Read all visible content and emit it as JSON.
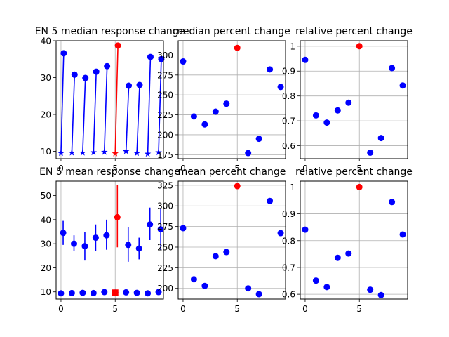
{
  "chart_data": [
    {
      "type": "stem",
      "title": "EN 5 median response change",
      "xlim": [
        -0.45,
        9.45
      ],
      "ylim": [
        8,
        40
      ],
      "xticks": [
        0,
        5
      ],
      "yticks": [
        10,
        20,
        30,
        40
      ],
      "grid": "x-only",
      "highlight_index": 5,
      "colors": {
        "normal": "#0000ff",
        "highlight": "#ff0000"
      },
      "segments": [
        {
          "x0": 0,
          "y0": 9.5,
          "x1": 0.25,
          "y1": 36.6
        },
        {
          "x0": 1,
          "y0": 9.6,
          "x1": 1.25,
          "y1": 30.8
        },
        {
          "x0": 2,
          "y0": 9.6,
          "x1": 2.25,
          "y1": 29.9
        },
        {
          "x0": 3,
          "y0": 9.7,
          "x1": 3.25,
          "y1": 31.6
        },
        {
          "x0": 4,
          "y0": 9.8,
          "x1": 4.25,
          "y1": 33.1
        },
        {
          "x0": 5,
          "y0": 9.4,
          "x1": 5.25,
          "y1": 38.7
        },
        {
          "x0": 6,
          "y0": 10.0,
          "x1": 6.25,
          "y1": 27.8
        },
        {
          "x0": 7,
          "y0": 9.5,
          "x1": 7.25,
          "y1": 28.0
        },
        {
          "x0": 8,
          "y0": 9.3,
          "x1": 8.25,
          "y1": 35.6
        },
        {
          "x0": 9,
          "y0": 9.7,
          "x1": 9.25,
          "y1": 35.0
        }
      ]
    },
    {
      "type": "scatter",
      "title": "median percent change",
      "xlim": [
        -0.45,
        9.45
      ],
      "ylim": [
        170,
        318
      ],
      "xticks": [
        0,
        5
      ],
      "yticks": [
        175,
        200,
        225,
        250,
        275,
        300
      ],
      "grid": "both",
      "highlight_index": 5,
      "colors": {
        "normal": "#0000ff",
        "highlight": "#ff0000"
      },
      "x": [
        0,
        1,
        2,
        3,
        4,
        5,
        6,
        7,
        8,
        9
      ],
      "y": [
        292,
        223,
        213,
        229,
        239,
        309,
        177,
        195,
        282,
        260
      ]
    },
    {
      "type": "scatter",
      "title": "relative percent change",
      "xlim": [
        -0.45,
        9.45
      ],
      "ylim": [
        0.548,
        1.022
      ],
      "xticks": [
        0,
        5
      ],
      "yticks": [
        0.6,
        0.7,
        0.8,
        0.9,
        1.0
      ],
      "grid": "both",
      "highlight_index": 5,
      "colors": {
        "normal": "#0000ff",
        "highlight": "#ff0000"
      },
      "x": [
        0,
        1,
        2,
        3,
        4,
        5,
        6,
        7,
        8,
        9
      ],
      "y": [
        0.945,
        0.722,
        0.693,
        0.742,
        0.773,
        1.0,
        0.572,
        0.631,
        0.912,
        0.842
      ]
    },
    {
      "type": "errorbar",
      "title": "EN 5 mean response change",
      "xlim": [
        -0.45,
        9.45
      ],
      "ylim": [
        7,
        56
      ],
      "xticks": [
        0,
        5
      ],
      "yticks": [
        10,
        20,
        30,
        40,
        50
      ],
      "grid": "x-only",
      "highlight_index": 5,
      "colors": {
        "normal": "#0000ff",
        "highlight": "#ff0000"
      },
      "base_points": [
        {
          "x": 0,
          "y": 9.4
        },
        {
          "x": 1,
          "y": 9.5
        },
        {
          "x": 2,
          "y": 9.6
        },
        {
          "x": 3,
          "y": 9.5
        },
        {
          "x": 4,
          "y": 9.9
        },
        {
          "x": 5,
          "y": 9.7
        },
        {
          "x": 6,
          "y": 9.8
        },
        {
          "x": 7,
          "y": 9.6
        },
        {
          "x": 8,
          "y": 9.4
        },
        {
          "x": 9,
          "y": 9.9
        }
      ],
      "means": [
        {
          "x": 0.2,
          "y": 34.5,
          "low": 29.5,
          "high": 39.5
        },
        {
          "x": 1.2,
          "y": 30.0,
          "low": 27.0,
          "high": 33.5
        },
        {
          "x": 2.2,
          "y": 29.0,
          "low": 23.0,
          "high": 35.0
        },
        {
          "x": 3.2,
          "y": 32.5,
          "low": 27.0,
          "high": 38.0
        },
        {
          "x": 4.2,
          "y": 33.5,
          "low": 27.5,
          "high": 40.0
        },
        {
          "x": 5.2,
          "y": 41.0,
          "low": 28.5,
          "high": 54.5
        },
        {
          "x": 6.2,
          "y": 29.5,
          "low": 22.5,
          "high": 37.0
        },
        {
          "x": 7.2,
          "y": 28.0,
          "low": 23.5,
          "high": 32.5
        },
        {
          "x": 8.2,
          "y": 38.0,
          "low": 31.5,
          "high": 45.0
        },
        {
          "x": 9.2,
          "y": 36.0,
          "low": 27.5,
          "high": 44.5
        }
      ]
    },
    {
      "type": "scatter",
      "title": "mean percent change",
      "xlim": [
        -0.45,
        9.45
      ],
      "ylim": [
        187,
        330
      ],
      "xticks": [
        0,
        5
      ],
      "yticks": [
        200,
        225,
        250,
        275,
        300,
        325
      ],
      "grid": "both",
      "highlight_index": 5,
      "colors": {
        "normal": "#0000ff",
        "highlight": "#ff0000"
      },
      "x": [
        0,
        1,
        2,
        3,
        4,
        5,
        6,
        7,
        8,
        9
      ],
      "y": [
        273,
        211,
        203,
        239,
        244,
        324,
        200,
        193,
        306,
        267
      ]
    },
    {
      "type": "scatter",
      "title": "relative percent change",
      "xlim": [
        -0.45,
        9.45
      ],
      "ylim": [
        0.582,
        1.022
      ],
      "xticks": [
        0,
        5
      ],
      "yticks": [
        0.6,
        0.7,
        0.8,
        0.9,
        1.0
      ],
      "grid": "both",
      "highlight_index": 5,
      "colors": {
        "normal": "#0000ff",
        "highlight": "#ff0000"
      },
      "x": [
        0,
        1,
        2,
        3,
        4,
        5,
        6,
        7,
        8,
        9
      ],
      "y": [
        0.841,
        0.651,
        0.627,
        0.736,
        0.752,
        1.0,
        0.617,
        0.597,
        0.944,
        0.823
      ]
    }
  ]
}
